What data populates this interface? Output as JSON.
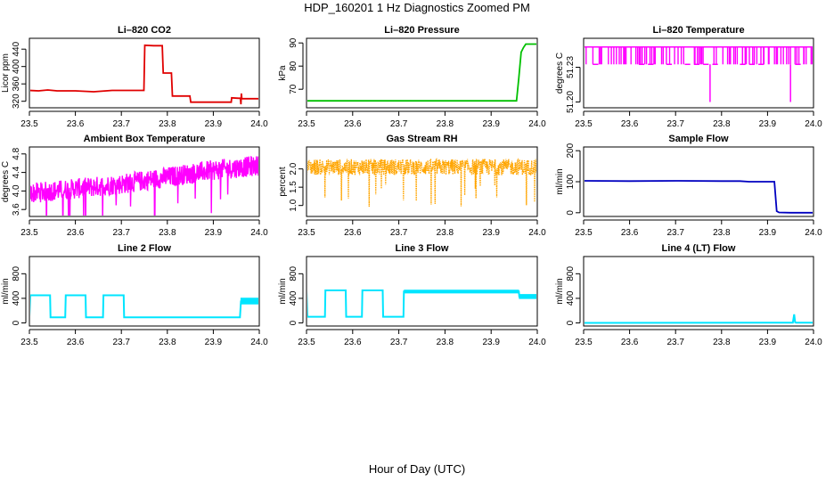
{
  "figure": {
    "title": "HDP_160201  1 Hz Diagnostics Zoomed PM",
    "xlabel": "Hour of Day (UTC)"
  },
  "chart_data": [
    {
      "type": "line",
      "title": "Li–820 CO2",
      "ylabel": "Licor ppm",
      "color": "#e00000",
      "xlim": [
        23.5,
        24.0
      ],
      "ylim": [
        305,
        465
      ],
      "xticks": [
        "23.5",
        "23.6",
        "23.7",
        "23.8",
        "23.9",
        "24.0"
      ],
      "yticks": [
        "320",
        "360",
        "400",
        "440"
      ],
      "x": [
        23.5,
        23.52,
        23.54,
        23.56,
        23.6,
        23.64,
        23.68,
        23.72,
        23.749,
        23.751,
        23.77,
        23.789,
        23.791,
        23.8,
        23.809,
        23.811,
        23.83,
        23.849,
        23.851,
        23.88,
        23.9,
        23.91,
        23.92,
        23.93,
        23.939,
        23.94,
        23.955,
        23.959,
        23.96,
        23.961,
        23.962,
        23.965,
        23.98,
        24.0
      ],
      "y": [
        345,
        344,
        346,
        344,
        344,
        342,
        345,
        345,
        345,
        449,
        448,
        448,
        385,
        385,
        385,
        332,
        332,
        332,
        318,
        318,
        318,
        318,
        318,
        318,
        318,
        328,
        327,
        327,
        313,
        338,
        326,
        326,
        326,
        326
      ]
    },
    {
      "type": "line",
      "title": "Li–820 Pressure",
      "ylabel": "kPa",
      "color": "#00c000",
      "xlim": [
        23.5,
        24.0
      ],
      "ylim": [
        62,
        92
      ],
      "xticks": [
        "23.5",
        "23.6",
        "23.7",
        "23.8",
        "23.9",
        "24.0"
      ],
      "yticks": [
        "70",
        "80",
        "90"
      ],
      "x": [
        23.5,
        23.6,
        23.7,
        23.8,
        23.9,
        23.945,
        23.955,
        23.96,
        23.965,
        23.97,
        23.975,
        23.98,
        24.0
      ],
      "y": [
        65,
        65,
        65,
        65,
        65,
        65,
        65,
        75,
        86,
        88,
        89.5,
        89.5,
        89.5
      ]
    },
    {
      "type": "line",
      "title": "Li–820 Temperature",
      "ylabel": "degrees C",
      "color": "#ff00ff",
      "xlim": [
        23.5,
        24.0
      ],
      "ylim": [
        51.195,
        51.255
      ],
      "xticks": [
        "23.5",
        "23.6",
        "23.7",
        "23.8",
        "23.9",
        "24.0"
      ],
      "yticks": [
        "51.20",
        "51.23"
      ],
      "levels": [
        51.2475,
        51.2325
      ],
      "spikes": [
        {
          "x": 23.775,
          "y": 51.2
        },
        {
          "x": 23.95,
          "y": 51.2
        }
      ]
    },
    {
      "type": "line",
      "title": "Ambient Box Temperature",
      "ylabel": "degrees C",
      "color": "#ff00ff",
      "xlim": [
        23.5,
        24.0
      ],
      "ylim": [
        3.45,
        4.95
      ],
      "xticks": [
        "23.5",
        "23.6",
        "23.7",
        "23.8",
        "23.9",
        "24.0"
      ],
      "yticks": [
        "3.6",
        "4.0",
        "4.4",
        "4.8"
      ],
      "x": [
        23.5,
        23.6,
        23.7,
        23.8,
        23.9,
        24.0
      ],
      "y_mid": [
        3.95,
        4.05,
        4.15,
        4.3,
        4.45,
        4.55
      ],
      "y_spread": [
        0.22,
        0.22,
        0.22,
        0.22,
        0.22,
        0.22
      ]
    },
    {
      "type": "line",
      "title": "Gas Stream RH",
      "ylabel": "percent",
      "color": "#ffa500",
      "xlim": [
        23.5,
        24.0
      ],
      "ylim": [
        0.7,
        2.6
      ],
      "xticks": [
        "23.5",
        "23.6",
        "23.7",
        "23.8",
        "23.9",
        "24.0"
      ],
      "yticks": [
        "1.0",
        "1.5",
        "2.0"
      ],
      "x": [
        23.5,
        24.0
      ],
      "y_mid": [
        2.05,
        2.05
      ],
      "y_spread": [
        0.22,
        0.22
      ]
    },
    {
      "type": "line",
      "title": "Sample Flow",
      "ylabel": "ml/min",
      "color": "#0000c0",
      "xlim": [
        23.5,
        24.0
      ],
      "ylim": [
        -12,
        212
      ],
      "xticks": [
        "23.5",
        "23.6",
        "23.7",
        "23.8",
        "23.9",
        "24.0"
      ],
      "yticks": [
        "0",
        "100",
        "200"
      ],
      "x": [
        23.5,
        23.6,
        23.7,
        23.8,
        23.84,
        23.86,
        23.9,
        23.915,
        23.92,
        23.925,
        23.95,
        24.0
      ],
      "y": [
        103,
        102,
        103,
        102,
        102,
        100,
        100,
        100,
        5,
        1,
        0,
        0
      ]
    },
    {
      "type": "line",
      "title": "Line 2 Flow",
      "ylabel": "ml/min",
      "color": "#00e5ff",
      "xlim": [
        23.5,
        24.0
      ],
      "ylim": [
        -50,
        1080
      ],
      "xticks": [
        "23.5",
        "23.6",
        "23.7",
        "23.8",
        "23.9",
        "24.0"
      ],
      "yticks": [
        "0",
        "400",
        "800"
      ],
      "x": [
        23.5,
        23.502,
        23.545,
        23.546,
        23.578,
        23.579,
        23.622,
        23.623,
        23.66,
        23.661,
        23.705,
        23.706,
        23.8,
        23.9,
        23.958,
        23.96,
        24.0
      ],
      "y": [
        100,
        450,
        450,
        90,
        90,
        450,
        450,
        90,
        90,
        450,
        450,
        90,
        90,
        90,
        90,
        350,
        350
      ]
    },
    {
      "type": "line",
      "title": "Line 3 Flow",
      "ylabel": "ml/min",
      "color": "#00e5ff",
      "xlim": [
        23.5,
        24.0
      ],
      "ylim": [
        -50,
        1080
      ],
      "xticks": [
        "23.5",
        "23.6",
        "23.7",
        "23.8",
        "23.9",
        "24.0"
      ],
      "yticks": [
        "0",
        "400",
        "800"
      ],
      "x": [
        23.5,
        23.502,
        23.503,
        23.54,
        23.541,
        23.585,
        23.586,
        23.62,
        23.621,
        23.665,
        23.666,
        23.71,
        23.711,
        23.8,
        23.9,
        23.96,
        23.961,
        24.0
      ],
      "y": [
        530,
        100,
        100,
        100,
        530,
        530,
        100,
        100,
        530,
        530,
        100,
        100,
        510,
        510,
        510,
        510,
        430,
        430
      ]
    },
    {
      "type": "line",
      "title": "Line 4 (LT) Flow",
      "ylabel": "ml/min",
      "color": "#00e5ff",
      "xlim": [
        23.5,
        24.0
      ],
      "ylim": [
        -50,
        1080
      ],
      "xticks": [
        "23.5",
        "23.6",
        "23.7",
        "23.8",
        "23.9",
        "24.0"
      ],
      "yticks": [
        "0",
        "400",
        "800"
      ],
      "x": [
        23.5,
        23.7,
        23.9,
        23.955,
        23.958,
        23.96,
        23.962,
        24.0
      ],
      "y": [
        0,
        2,
        3,
        3,
        140,
        10,
        3,
        3
      ]
    }
  ]
}
